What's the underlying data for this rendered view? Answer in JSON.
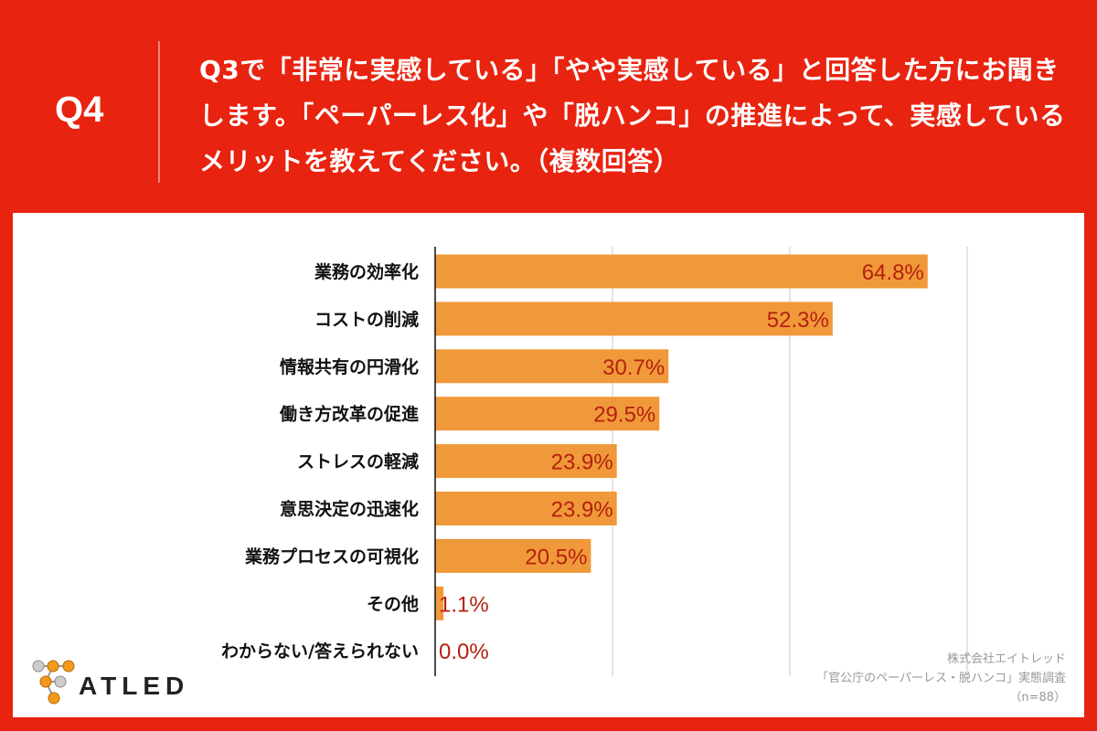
{
  "header": {
    "question_number": "Q4",
    "question_text": "Q3で「非常に実感している」「やや実感している」と回答した方にお聞きします。「ペーパーレス化」や「脱ハンコ」の推進によって、実感しているメリットを教えてください。（複数回答）"
  },
  "chart_data": {
    "type": "bar",
    "orientation": "horizontal",
    "categories": [
      "業務の効率化",
      "コストの削減",
      "情報共有の円滑化",
      "働き方改革の促進",
      "ストレスの軽減",
      "意思決定の迅速化",
      "業務プロセスの可視化",
      "その他",
      "わからない/答えられない"
    ],
    "values": [
      64.8,
      52.3,
      30.7,
      29.5,
      23.9,
      23.9,
      20.5,
      1.1,
      0.0
    ],
    "value_labels": [
      "64.8%",
      "52.3%",
      "30.7%",
      "29.5%",
      "23.9%",
      "23.9%",
      "20.5%",
      "1.1%",
      "0.0%"
    ],
    "xlim": [
      0,
      70
    ],
    "grid": true,
    "bar_color": "#F0993A",
    "label_color": "#B5200F"
  },
  "source": {
    "company": "株式会社エイトレッド",
    "survey": "「官公庁のペーパーレス・脱ハンコ」実態調査",
    "sample": "（n=88）"
  },
  "logo": {
    "text": "ATLED"
  },
  "colors": {
    "background": "#E8230F",
    "panel": "#FFFFFF"
  }
}
